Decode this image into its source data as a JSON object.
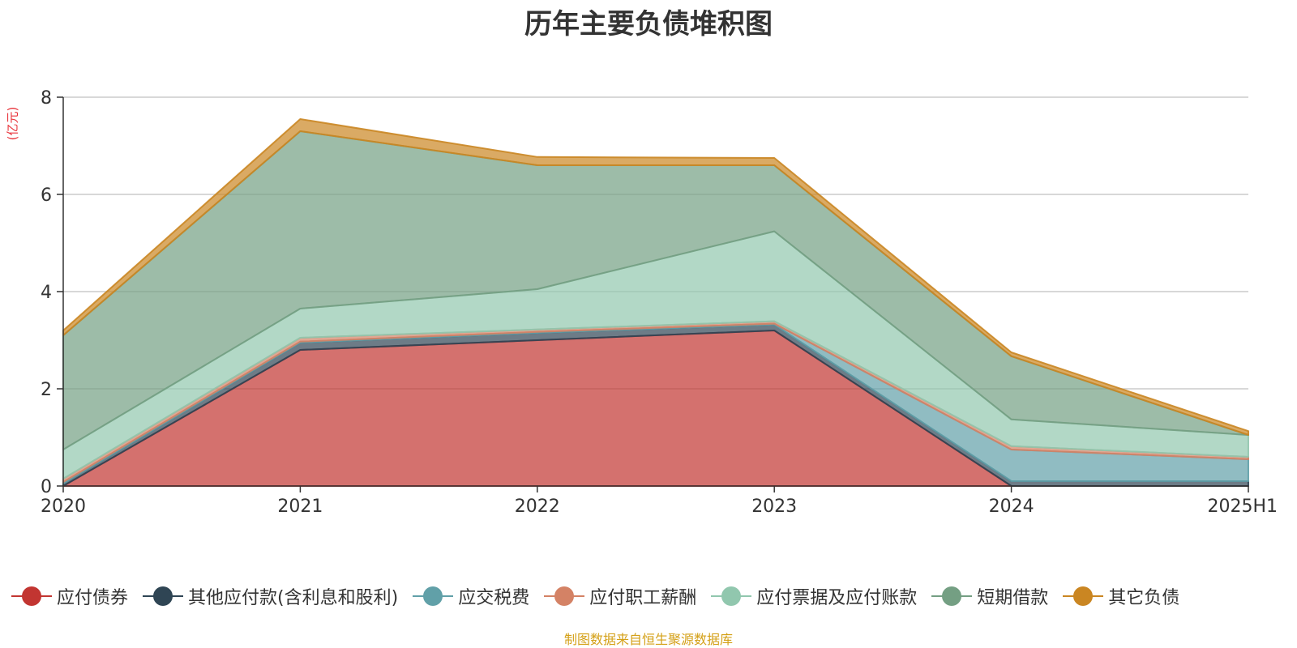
{
  "chart_data": {
    "type": "area",
    "title": "历年主要负债堆积图",
    "ylabel": "(亿元)",
    "categories": [
      "2020",
      "2021",
      "2022",
      "2023",
      "2024",
      "2025H1"
    ],
    "ylim": [
      0,
      8
    ],
    "yticks": [
      "0",
      "2",
      "4",
      "6",
      "8"
    ],
    "grid": true,
    "stacked": true,
    "legend_position": "bottom",
    "series": [
      {
        "name": "应付债券",
        "color": "#c23531",
        "values": [
          0.0,
          2.8,
          3.0,
          3.2,
          0.0,
          0.0
        ]
      },
      {
        "name": "其他应付款(含利息和股利)",
        "color": "#2f4554",
        "values": [
          0.05,
          0.15,
          0.15,
          0.12,
          0.1,
          0.1
        ]
      },
      {
        "name": "应交税费",
        "color": "#61a0a8",
        "values": [
          0.03,
          0.02,
          0.02,
          0.02,
          0.65,
          0.45
        ]
      },
      {
        "name": "应付职工薪酬",
        "color": "#d48265",
        "values": [
          0.07,
          0.08,
          0.05,
          0.05,
          0.07,
          0.05
        ]
      },
      {
        "name": "应付票据及应付账款",
        "color": "#91c7ae",
        "values": [
          0.6,
          0.6,
          0.83,
          1.85,
          0.55,
          0.45
        ]
      },
      {
        "name": "短期借款",
        "color": "#749f83",
        "values": [
          2.35,
          3.65,
          2.55,
          1.36,
          1.3,
          0.0
        ]
      },
      {
        "name": "其它负债",
        "color": "#ca8622",
        "values": [
          0.1,
          0.25,
          0.17,
          0.15,
          0.08,
          0.08
        ]
      }
    ]
  },
  "footer": {
    "source": "制图数据来自恒生聚源数据库"
  }
}
